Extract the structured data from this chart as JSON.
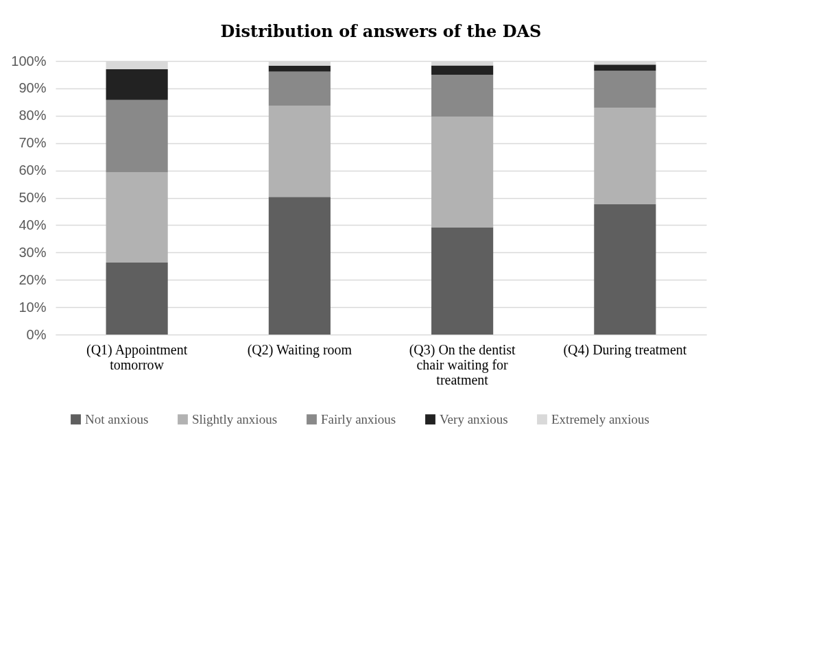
{
  "chart_data": {
    "type": "bar",
    "title": "Distribution of answers of the DAS",
    "stacked": true,
    "categories": [
      "(Q1) Appointment tomorrow",
      "(Q2) Waiting room",
      "(Q3) On the dentist chair waiting for treatment",
      "(Q4) During treatment"
    ],
    "series": [
      {
        "name": "Not anxious",
        "color": "#5f5f5f",
        "values": [
          26.3,
          50.3,
          39.2,
          47.6
        ]
      },
      {
        "name": "Slightly anxious",
        "color": "#b2b2b2",
        "values": [
          33.0,
          33.4,
          40.5,
          35.3
        ]
      },
      {
        "name": "Fairly anxious",
        "color": "#898989",
        "values": [
          26.5,
          12.4,
          15.3,
          13.5
        ]
      },
      {
        "name": "Very anxious",
        "color": "#222222",
        "values": [
          11.2,
          2.2,
          3.4,
          2.3
        ]
      },
      {
        "name": "Extremely anxious",
        "color": "#d9d9d9",
        "values": [
          3.0,
          1.7,
          1.6,
          1.3
        ]
      }
    ],
    "ylim": [
      0,
      100
    ],
    "yticks": [
      {
        "value": 0,
        "label": "0%"
      },
      {
        "value": 10,
        "label": "10%"
      },
      {
        "value": 20,
        "label": "20%"
      },
      {
        "value": 30,
        "label": "30%"
      },
      {
        "value": 40,
        "label": "40%"
      },
      {
        "value": 50,
        "label": "50%"
      },
      {
        "value": 60,
        "label": "60%"
      },
      {
        "value": 70,
        "label": "70%"
      },
      {
        "value": 80,
        "label": "80%"
      },
      {
        "value": 90,
        "label": "90%"
      },
      {
        "value": 100,
        "label": "100%"
      }
    ],
    "grid": "y",
    "legend": "bottom"
  }
}
